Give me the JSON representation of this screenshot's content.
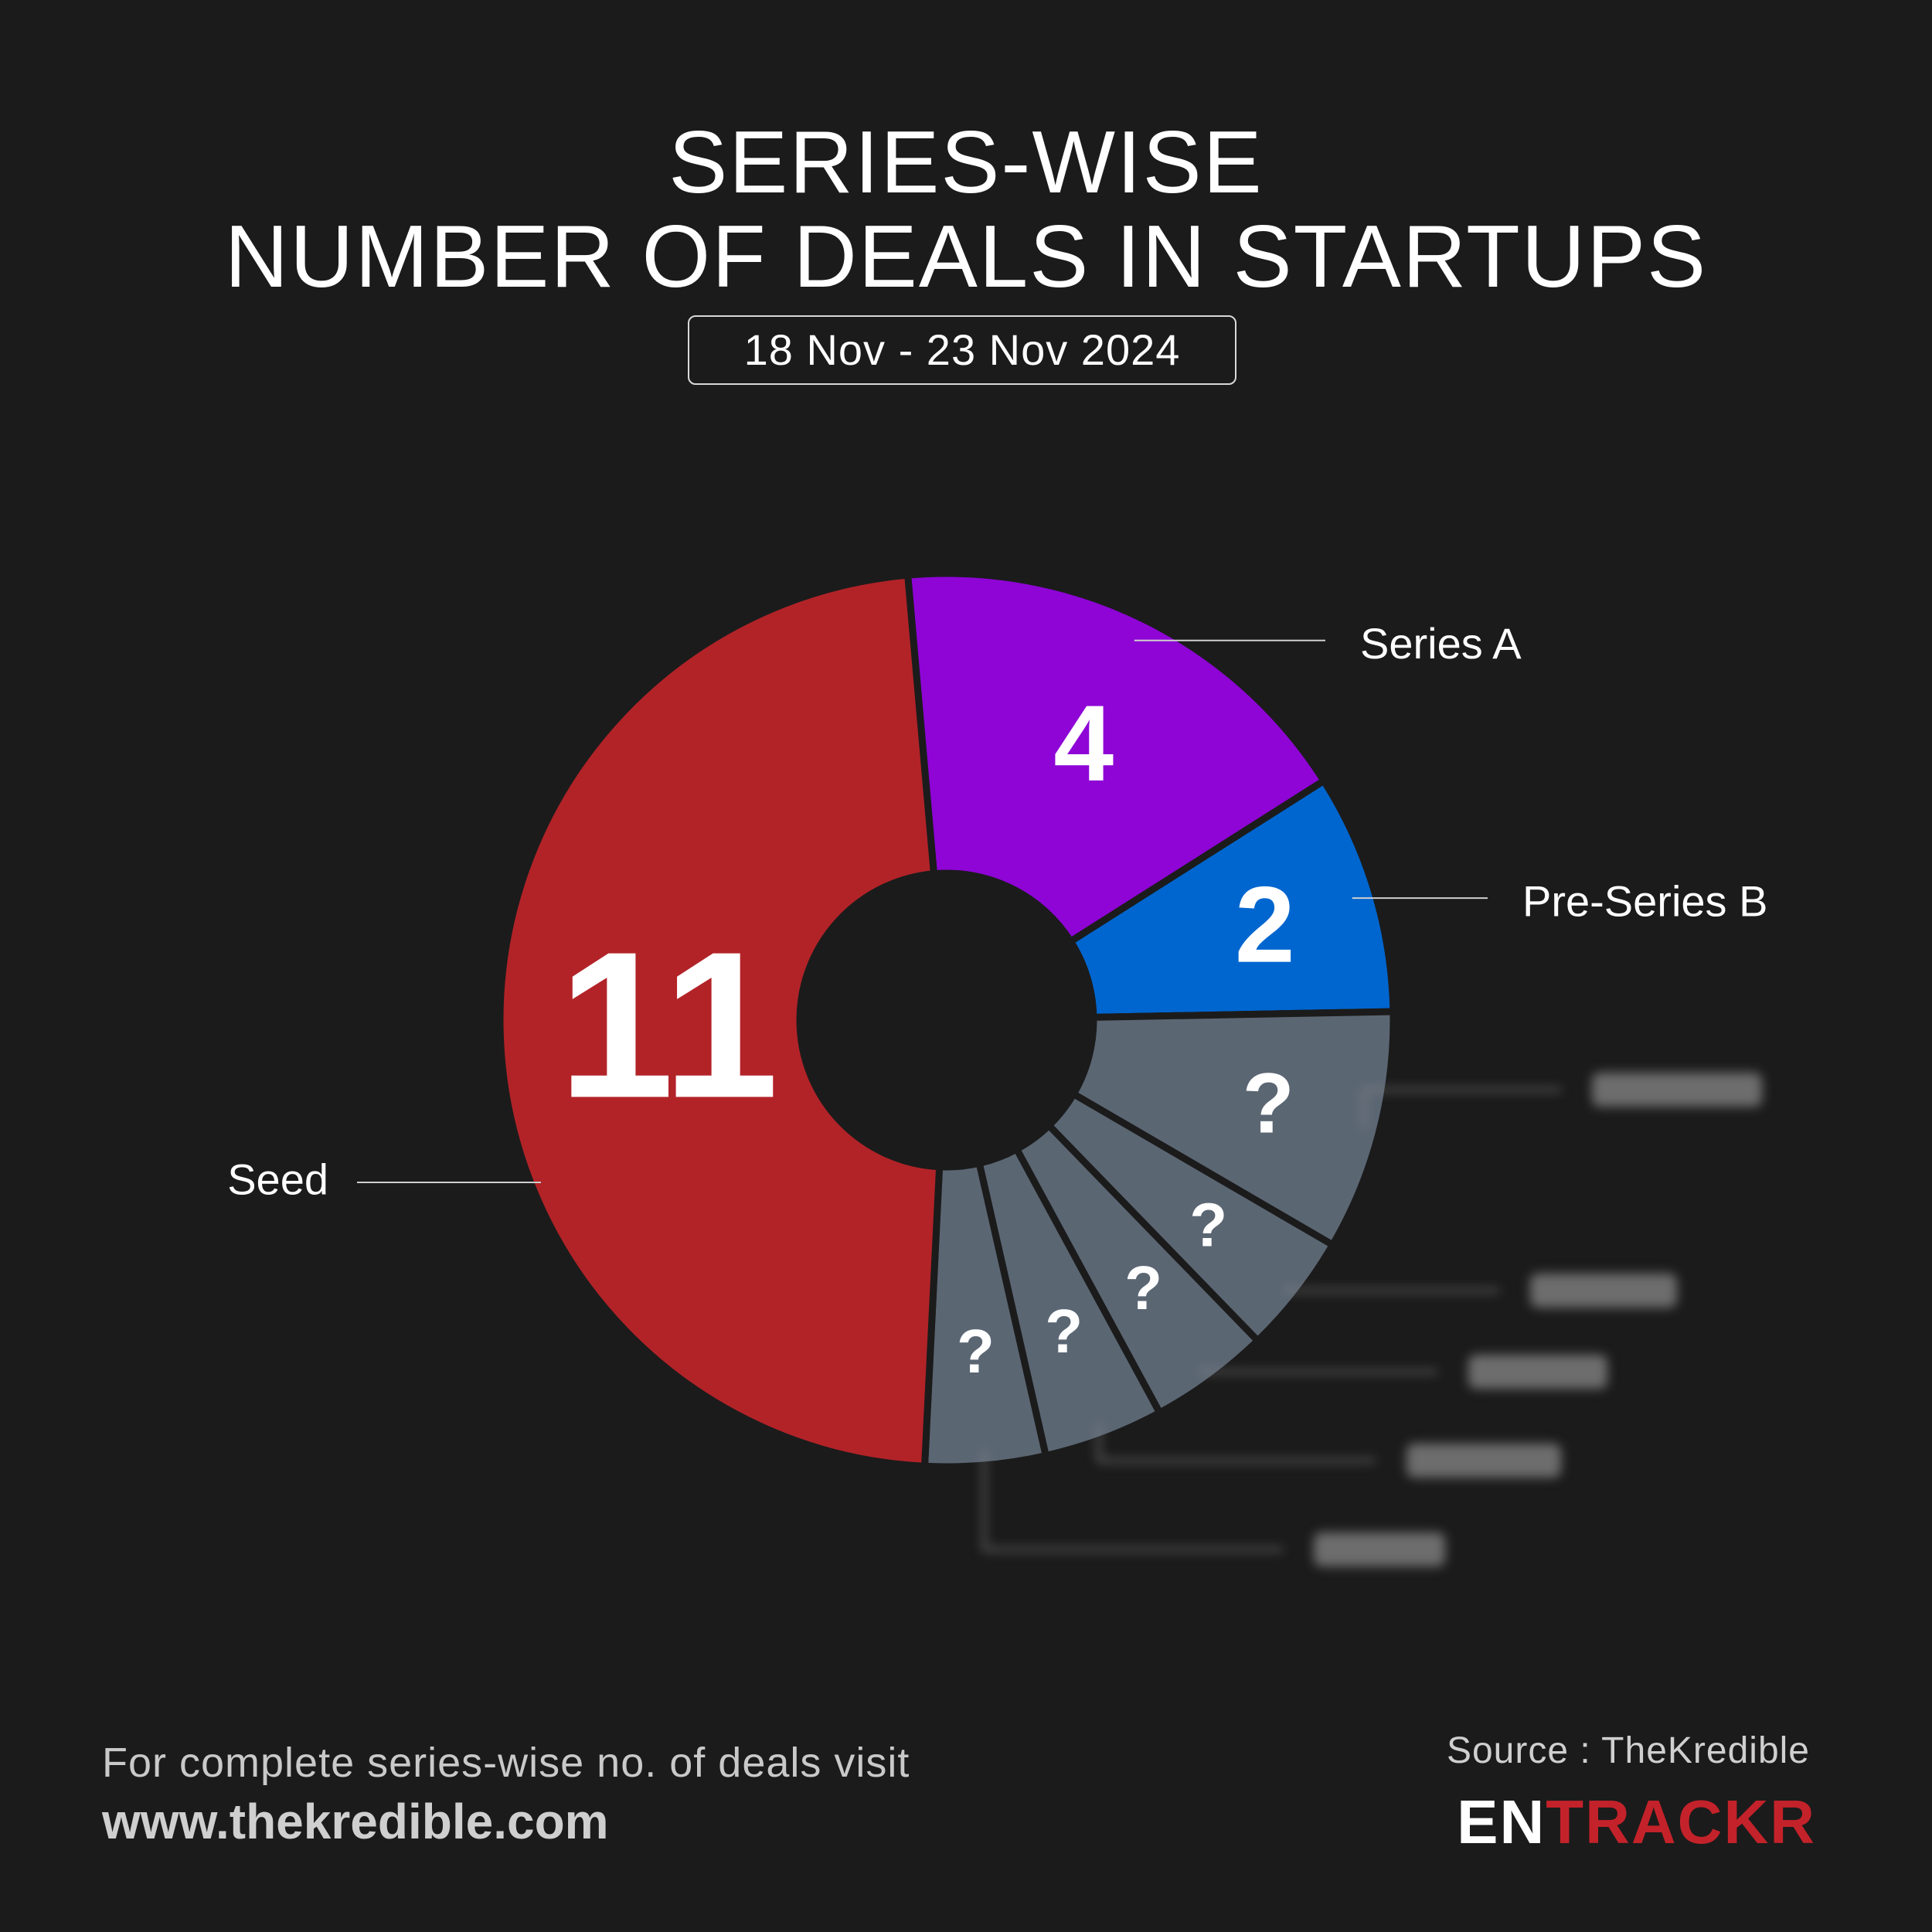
{
  "header": {
    "title_line1": "SERIES-WISE",
    "title_line2": "NUMBER OF DEALS IN STARTUPS",
    "date_range": "18 Nov - 23 Nov 2024"
  },
  "chart_data": {
    "type": "pie",
    "donut": true,
    "slices": [
      {
        "label": "Series A",
        "value": 4,
        "display": "4",
        "color": "#8e05d6",
        "label_side": "right"
      },
      {
        "label": "Pre-Series B",
        "value": 2,
        "display": "2",
        "color": "#0066cf",
        "label_side": "right"
      },
      {
        "label": "",
        "value": 2,
        "display": "?",
        "color": "#5b6673",
        "label_side": "right",
        "hidden_label": true
      },
      {
        "label": "",
        "value": 1,
        "display": "?",
        "color": "#5b6673",
        "label_side": "right",
        "hidden_label": true
      },
      {
        "label": "",
        "value": 1,
        "display": "?",
        "color": "#5b6673",
        "label_side": "right",
        "hidden_label": true
      },
      {
        "label": "",
        "value": 1,
        "display": "?",
        "color": "#5b6673",
        "label_side": "right",
        "hidden_label": true
      },
      {
        "label": "",
        "value": 1,
        "display": "?",
        "color": "#5b6673",
        "label_side": "right",
        "hidden_label": true
      },
      {
        "label": "Seed",
        "value": 11,
        "display": "11",
        "color": "#b22328",
        "label_side": "left"
      }
    ]
  },
  "footer": {
    "note": "For complete series-wise no. of deals visit",
    "url": "www.thekredible.com",
    "source": "Source : TheKredible",
    "logo_part1": "EN",
    "logo_part2": "TRACKR"
  }
}
